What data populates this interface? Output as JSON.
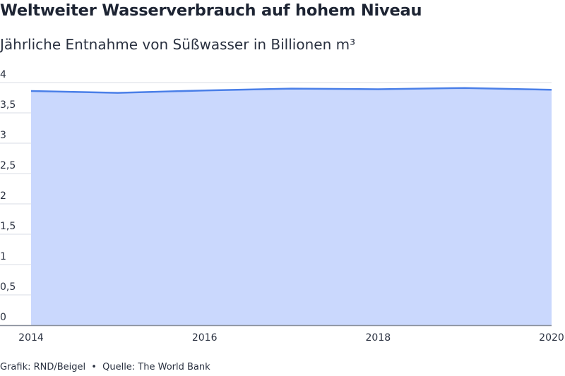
{
  "header": {
    "title": "Weltweiter Wasserverbrauch auf hohem Niveau",
    "subtitle": "Jährliche Entnahme von Süßwasser in Billionen m³"
  },
  "footer": {
    "credit": "Grafik: RND/Beigel",
    "separator": "•",
    "source": "Quelle: The World Bank"
  },
  "colors": {
    "line": "#4a7fe8",
    "area": "#cad8fd",
    "grid": "#d9dde6",
    "axis": "#8a909c"
  },
  "chart_data": {
    "type": "area",
    "title": "Weltweiter Wasserverbrauch auf hohem Niveau",
    "subtitle": "Jährliche Entnahme von Süßwasser in Billionen m³",
    "x": [
      2014,
      2015,
      2016,
      2017,
      2018,
      2019,
      2020
    ],
    "values": [
      3.86,
      3.83,
      3.87,
      3.9,
      3.89,
      3.91,
      3.88
    ],
    "xlim": [
      2014,
      2020
    ],
    "ylim": [
      0,
      4
    ],
    "x_ticks": [
      "2014",
      "2016",
      "2018",
      "2020"
    ],
    "y_ticks": [
      "0",
      "0,5",
      "1",
      "1,5",
      "2",
      "2,5",
      "3",
      "3,5",
      "4"
    ],
    "grid": true,
    "legend": "none"
  }
}
